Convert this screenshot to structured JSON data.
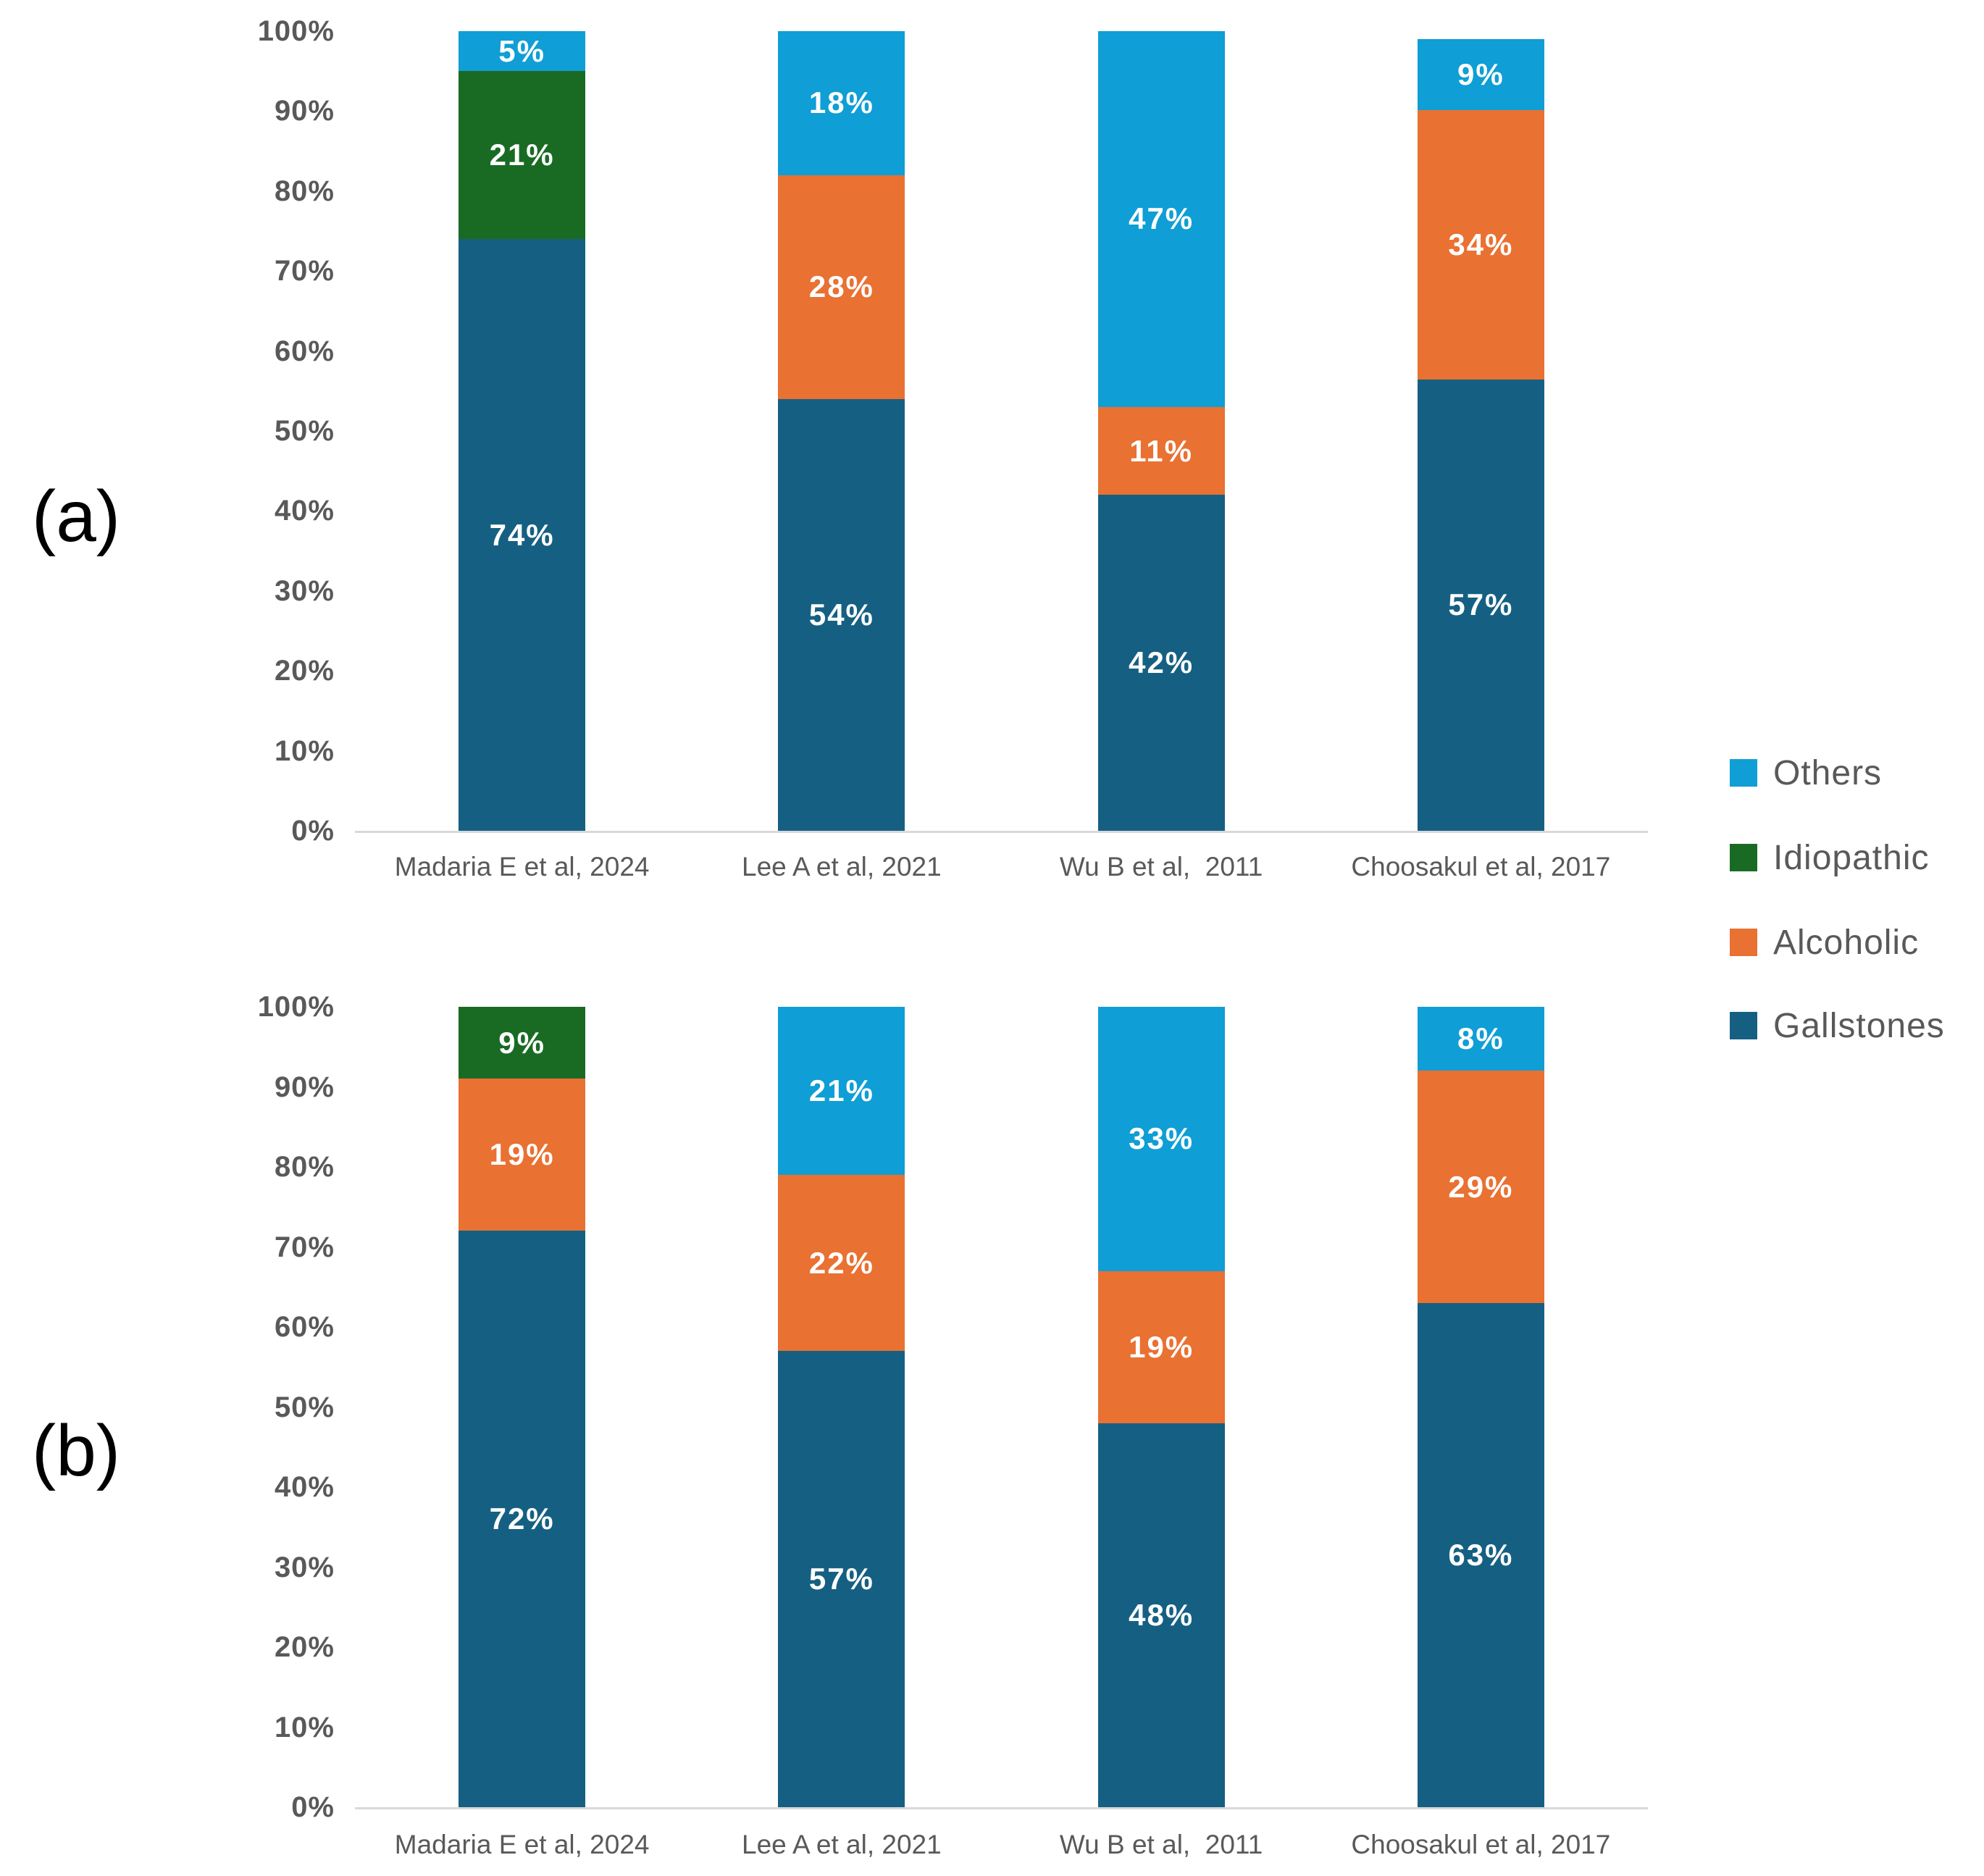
{
  "panels": [
    {
      "label": "(a)"
    },
    {
      "label": "(b)"
    }
  ],
  "legend": {
    "position": "right",
    "items": [
      {
        "label": "Others",
        "color": "#0F9ED5"
      },
      {
        "label": "Idiopathic",
        "color": "#196B24"
      },
      {
        "label": "Alcoholic",
        "color": "#E97132"
      },
      {
        "label": "Gallstones",
        "color": "#156082"
      }
    ]
  },
  "y_axis": {
    "tick_labels": [
      "0%",
      "10%",
      "20%",
      "30%",
      "40%",
      "50%",
      "60%",
      "70%",
      "80%",
      "90%",
      "100%"
    ],
    "range": [
      0,
      100
    ]
  },
  "colors": {
    "gallstones": "#156082",
    "alcoholic": "#E97132",
    "idiopathic": "#196B24",
    "others": "#0F9ED5",
    "axis_text": "#595959",
    "axis_line": "#D9D9D9",
    "data_label": "#FFFFFF"
  },
  "chart_data": [
    {
      "type": "bar",
      "stacked": true,
      "panel": "(a)",
      "title": "",
      "xlabel": "",
      "ylabel": "",
      "ylim": [
        0,
        100
      ],
      "grid": false,
      "legend_position": "right",
      "data_label_suffix": "%",
      "categories": [
        "Madaria E et al, 2024",
        "Lee A et al, 2021",
        "Wu B et al,  2011",
        "Choosakul et al, 2017"
      ],
      "series": [
        {
          "name": "Gallstones",
          "color": "#156082",
          "values": [
            74,
            54,
            42,
            57
          ]
        },
        {
          "name": "Alcoholic",
          "color": "#E97132",
          "values": [
            0,
            28,
            11,
            34
          ]
        },
        {
          "name": "Idiopathic",
          "color": "#196B24",
          "values": [
            21,
            0,
            0,
            0
          ]
        },
        {
          "name": "Others",
          "color": "#0F9ED5",
          "values": [
            5,
            18,
            47,
            9
          ]
        }
      ],
      "bar_top_percent": [
        100,
        100,
        100,
        99
      ]
    },
    {
      "type": "bar",
      "stacked": true,
      "panel": "(b)",
      "title": "",
      "xlabel": "",
      "ylabel": "",
      "ylim": [
        0,
        100
      ],
      "grid": false,
      "legend_position": "right",
      "data_label_suffix": "%",
      "categories": [
        "Madaria E et al, 2024",
        "Lee A et al, 2021",
        "Wu B et al,  2011",
        "Choosakul et al, 2017"
      ],
      "series": [
        {
          "name": "Gallstones",
          "color": "#156082",
          "values": [
            72,
            57,
            48,
            63
          ]
        },
        {
          "name": "Alcoholic",
          "color": "#E97132",
          "values": [
            19,
            22,
            19,
            29
          ]
        },
        {
          "name": "Idiopathic",
          "color": "#196B24",
          "values": [
            9,
            0,
            0,
            0
          ]
        },
        {
          "name": "Others",
          "color": "#0F9ED5",
          "values": [
            0,
            21,
            33,
            8
          ]
        }
      ],
      "bar_top_percent": [
        100,
        100,
        100,
        100
      ]
    }
  ]
}
